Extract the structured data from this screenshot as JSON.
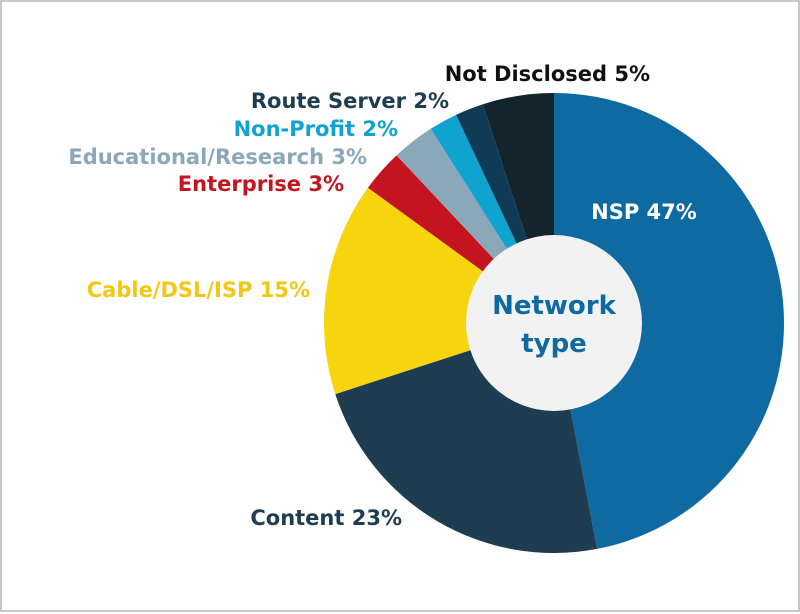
{
  "chart_data": {
    "type": "pie",
    "donut": true,
    "title": "",
    "center_label": [
      "Network",
      "type"
    ],
    "slices": [
      {
        "name": "NSP",
        "value": 47,
        "label": "NSP 47%",
        "color": "#0e6aa0",
        "text_color": "#ffffff"
      },
      {
        "name": "Content",
        "value": 23,
        "label": "Content 23%",
        "color": "#1e3d50",
        "text_color": "#1e3d50"
      },
      {
        "name": "Cable/DSL/ISP",
        "value": 15,
        "label": "Cable/DSL/ISP 15%",
        "color": "#f6d50f",
        "text_color": "#f2c816"
      },
      {
        "name": "Enterprise",
        "value": 3,
        "label": "Enterprise 3%",
        "color": "#c41420",
        "text_color": "#c41420"
      },
      {
        "name": "Educational/Research",
        "value": 3,
        "label": "Educational/Research 3%",
        "color": "#8ba7ba",
        "text_color": "#8ba7ba"
      },
      {
        "name": "Non-Profit",
        "value": 2,
        "label": "Non-Profit 2%",
        "color": "#11a3cf",
        "text_color": "#11a3cf"
      },
      {
        "name": "Route Server",
        "value": 2,
        "label": "Route Server 2%",
        "color": "#0f3b57",
        "text_color": "#1e3d50"
      },
      {
        "name": "Not Disclosed",
        "value": 5,
        "label": "Not Disclosed 5%",
        "color": "#13242d",
        "text_color": "#111111"
      }
    ],
    "center_text_color": "#0e6aa0",
    "center_fill": "#f2f2f2"
  }
}
